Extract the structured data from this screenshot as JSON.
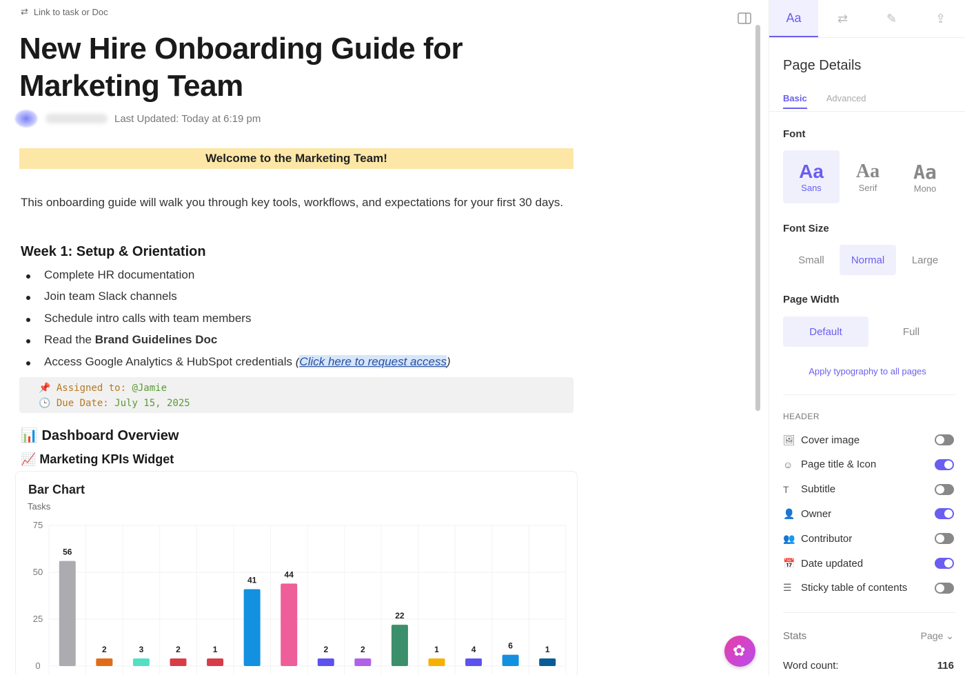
{
  "doc": {
    "link_label": "Link to task or Doc",
    "title": "New Hire Onboarding Guide for Marketing Team",
    "last_updated": "Last Updated: Today at 6:19 pm",
    "banner": "Welcome to the Marketing Team!",
    "intro": "This onboarding guide will walk you through key tools, workflows, and expectations for your first 30 days.",
    "week1_heading": "Week 1: Setup & Orientation",
    "items": [
      "Complete HR documentation",
      "Join team Slack channels",
      "Schedule intro calls with team members"
    ],
    "item4_prefix": "Read the ",
    "item4_bold": "Brand Guidelines Doc",
    "item5_prefix": "Access Google Analytics & HubSpot credentials ",
    "item5_open": "(",
    "item5_link": "Click here to request access",
    "item5_close": ")",
    "assigned_label": "📌 Assigned to: ",
    "assigned_value": "@Jamie",
    "due_label": "🕒 Due Date: ",
    "due_value": "July 15, 2025",
    "dashboard_heading": "📊 Dashboard Overview",
    "kpi_heading": "📈 Marketing KPIs Widget"
  },
  "chart_data": {
    "type": "bar",
    "title": "Bar Chart",
    "ylabel": "Tasks",
    "ylim": [
      0,
      75
    ],
    "yticks": [
      0,
      25,
      50,
      75
    ],
    "grid": true,
    "values": [
      56,
      2,
      3,
      2,
      1,
      41,
      44,
      2,
      2,
      22,
      1,
      4,
      6,
      1
    ],
    "colors": [
      "#acabb0",
      "#e06c1a",
      "#52e0c4",
      "#d63d48",
      "#d63d48",
      "#1390e0",
      "#ee5e98",
      "#5d52ee",
      "#b061e6",
      "#3b8f6a",
      "#f8b000",
      "#5d52ee",
      "#1390e0",
      "#075c96"
    ]
  },
  "sidebar": {
    "tabs": [
      "Aa",
      "⇄",
      "✎",
      "⇪"
    ],
    "title": "Page Details",
    "subtabs": [
      "Basic",
      "Advanced"
    ],
    "font_label": "Font",
    "fonts": [
      {
        "glyph": "Aa",
        "name": "Sans"
      },
      {
        "glyph": "Aa",
        "name": "Serif"
      },
      {
        "glyph": "Aa",
        "name": "Mono"
      }
    ],
    "size_label": "Font Size",
    "sizes": [
      "Small",
      "Normal",
      "Large"
    ],
    "width_label": "Page Width",
    "widths": [
      "Default",
      "Full"
    ],
    "apply": "Apply typography to all pages",
    "header_label": "HEADER",
    "toggles": [
      {
        "label": "Cover image",
        "icon": "🖼",
        "on": false
      },
      {
        "label": "Page title & Icon",
        "icon": "☺",
        "on": true
      },
      {
        "label": "Subtitle",
        "icon": "T",
        "on": false
      },
      {
        "label": "Owner",
        "icon": "👤",
        "on": true
      },
      {
        "label": "Contributor",
        "icon": "👥",
        "on": false
      },
      {
        "label": "Date updated",
        "icon": "📅",
        "on": true
      },
      {
        "label": "Sticky table of contents",
        "icon": "☰",
        "on": false
      }
    ],
    "stats_label": "Stats",
    "stats_scope": "Page ⌄",
    "word_count_label": "Word count:",
    "word_count": "116"
  },
  "accent": "#6a5ef0"
}
